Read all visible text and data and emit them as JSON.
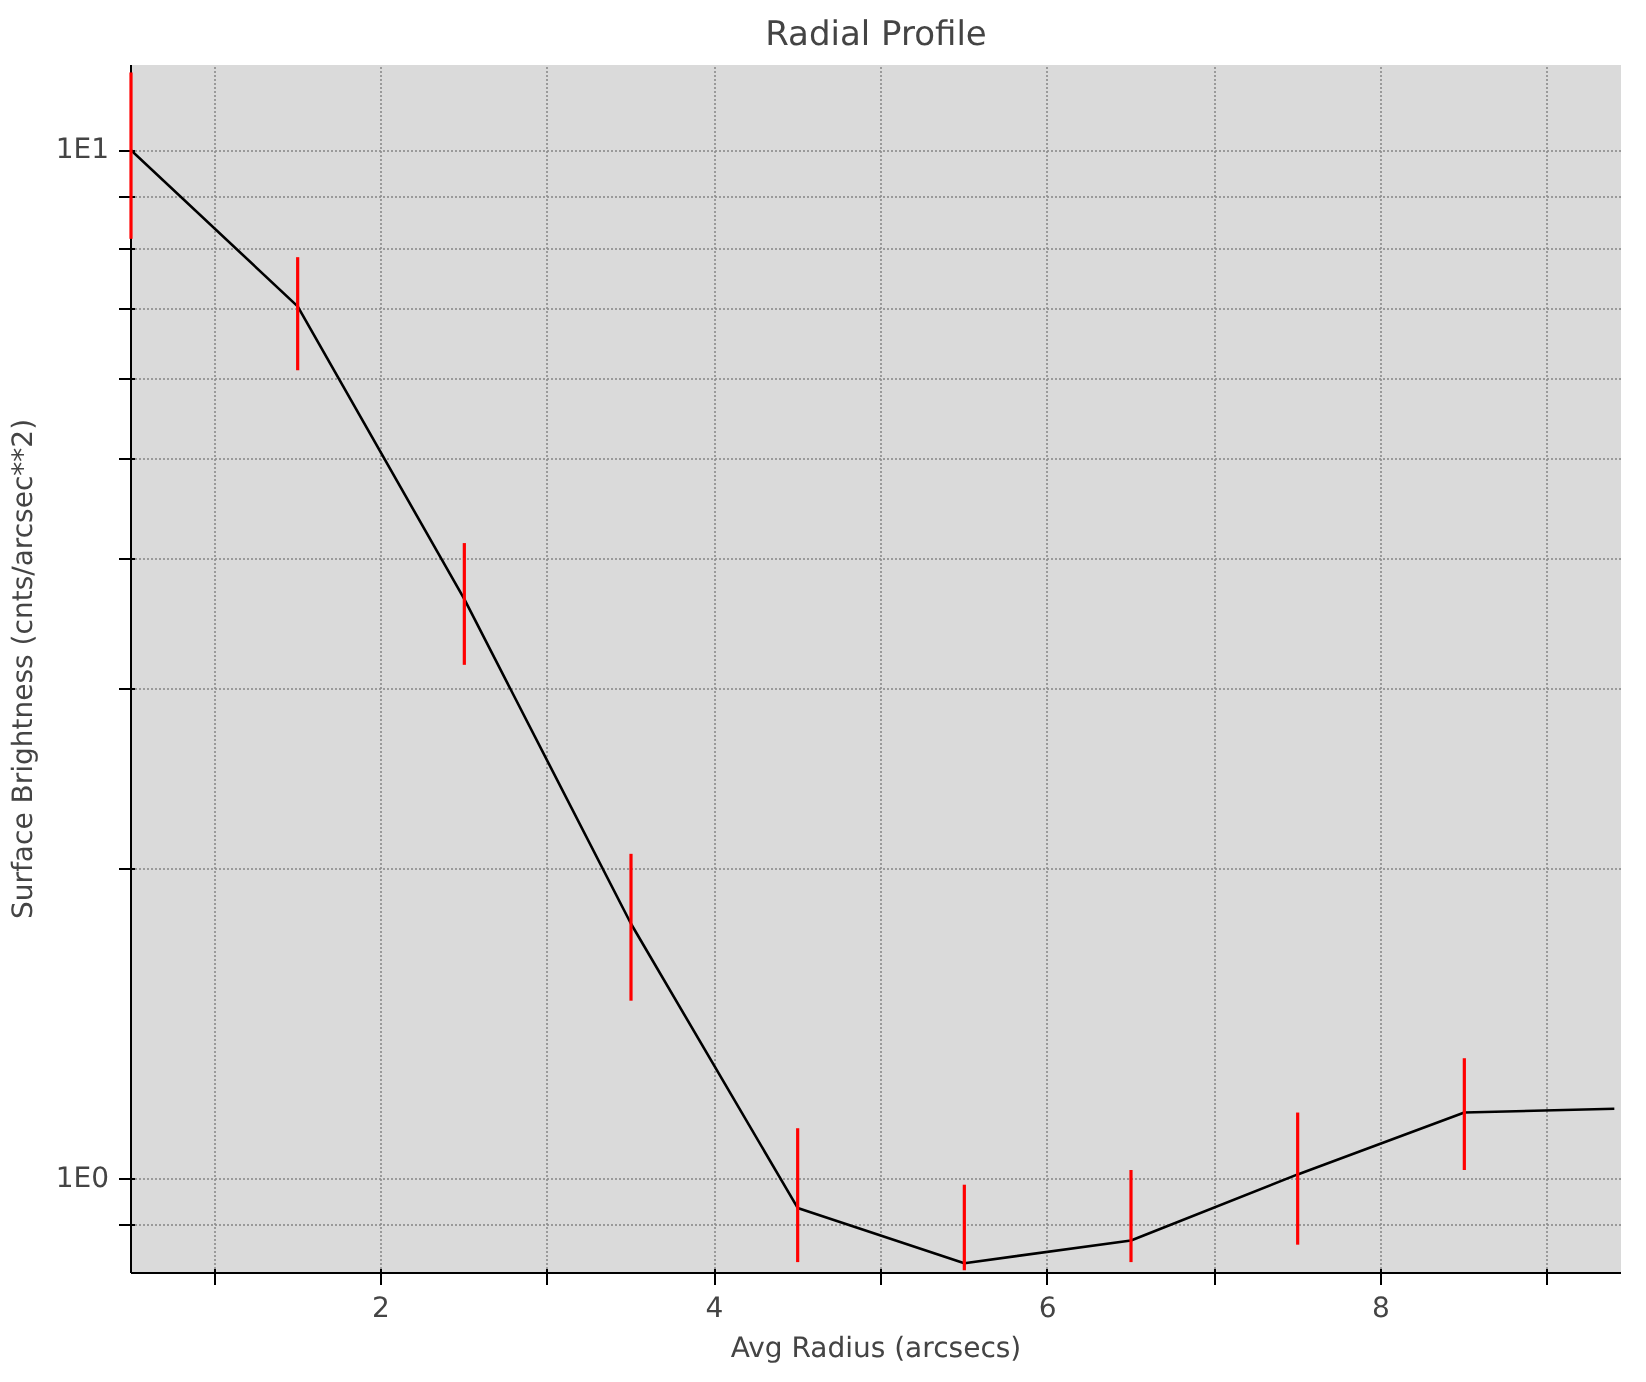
{
  "chart_data": {
    "type": "line",
    "title": "Radial Profile",
    "xlabel": "Avg Radius (arcsecs)",
    "ylabel": "Surface Brightness (cnts/arcsec**2)",
    "x": [
      0.5,
      1.5,
      2.5,
      3.5,
      4.5,
      5.5,
      6.5,
      7.5,
      8.5,
      9.4
    ],
    "series": [
      {
        "color": "#000000",
        "values": [
          10,
          7.05,
          3.66,
          1.77,
          0.937,
          0.828,
          0.871,
          1.01,
          1.16,
          1.17
        ],
        "errors": [
          [
            8.2,
            11.9
          ],
          [
            6.11,
            7.87
          ],
          [
            3.16,
            4.15
          ],
          [
            1.49,
            2.07
          ],
          [
            0.83,
            1.12
          ],
          [
            0.815,
            0.987
          ],
          [
            0.83,
            1.02
          ],
          [
            0.863,
            1.16
          ],
          [
            1.02,
            1.31
          ],
          null
        ]
      }
    ],
    "log": "y",
    "xlim": [
      0.5,
      9.44
    ],
    "ylim": [
      0.81,
      12.1
    ],
    "xticks": [
      {
        "value": 1,
        "label": null
      },
      2,
      {
        "value": 3,
        "label": null
      },
      4,
      {
        "value": 5,
        "label": null
      },
      6,
      {
        "value": 7,
        "label": null
      },
      8,
      {
        "value": 9,
        "label": null
      }
    ],
    "yticks": [
      {
        "value": 0.9,
        "label": null
      },
      {
        "value": 1,
        "label": "1E0"
      },
      {
        "value": 2,
        "label": null
      },
      {
        "value": 3,
        "label": null
      },
      {
        "value": 4,
        "label": null
      },
      {
        "value": 5,
        "label": null
      },
      {
        "value": 6,
        "label": null
      },
      {
        "value": 7,
        "label": null
      },
      {
        "value": 8,
        "label": null
      },
      {
        "value": 9,
        "label": null
      },
      {
        "value": 10,
        "label": "1E1"
      }
    ],
    "grid": true,
    "marker": "none",
    "line_style": "solid"
  }
}
